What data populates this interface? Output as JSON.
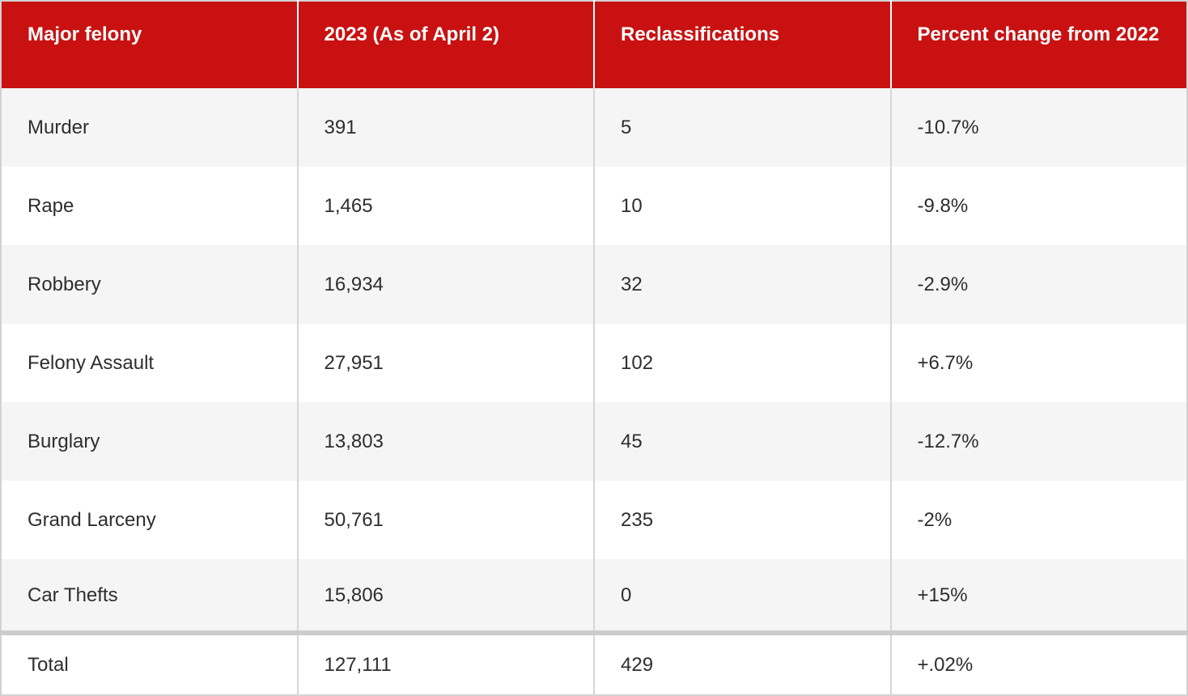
{
  "chart_data": {
    "type": "table",
    "columns": [
      "Major felony",
      "2023 (As of April 2)",
      "Reclassifications",
      "Percent change from 2022"
    ],
    "rows": [
      [
        "Murder",
        "391",
        "5",
        "-10.7%"
      ],
      [
        "Rape",
        "1,465",
        "10",
        "-9.8%"
      ],
      [
        "Robbery",
        "16,934",
        "32",
        "-2.9%"
      ],
      [
        "Felony Assault",
        "27,951",
        "102",
        "+6.7%"
      ],
      [
        "Burglary",
        "13,803",
        "45",
        "-12.7%"
      ],
      [
        "Grand Larceny",
        "50,761",
        "235",
        "-2%"
      ],
      [
        "Car Thefts",
        "15,806",
        "0",
        "+15%"
      ]
    ],
    "total_row": [
      "Total",
      "127,111",
      "429",
      "+.02%"
    ]
  },
  "colors": {
    "header_bg": "#c91111",
    "header_text": "#ffffff",
    "body_text": "#2e2e2e",
    "row_bg": "#ffffff",
    "row_alt_bg": "#f5f5f5",
    "divider": "#d6d6d6",
    "total_divider": "#cccccc",
    "outer_border": "#d2d2d2"
  }
}
